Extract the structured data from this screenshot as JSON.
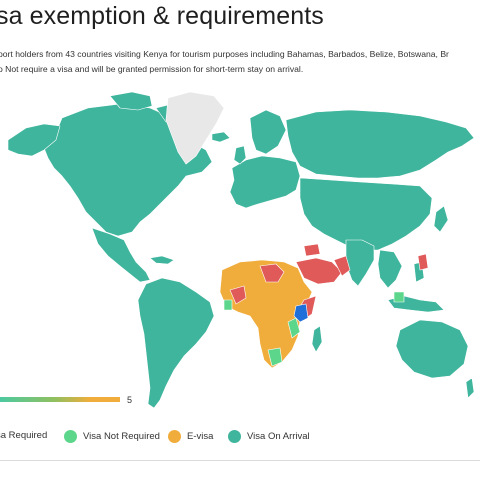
{
  "header": {
    "title": "sa exemption & requirements",
    "description_line1": "port holders from 43 countries visiting Kenya for tourism purposes including Bahamas, Barbados, Belize, Botswana, Br",
    "description_line2": "o Not require a visa and will be granted permission for short-term stay on arrival."
  },
  "scale": {
    "max_label": "5",
    "colors": [
      "#4cc9a0",
      "#f0ad3c"
    ]
  },
  "legend": {
    "items": [
      {
        "label": "sa Required",
        "color": "#e05a5a"
      },
      {
        "label": "Visa Not Required",
        "color": "#5cd68a"
      },
      {
        "label": "E-visa",
        "color": "#f0ad3c"
      },
      {
        "label": "Visa On Arrival",
        "color": "#3fb59d"
      }
    ]
  },
  "map": {
    "colors": {
      "visa_on_arrival": "#3fb59d",
      "visa_required": "#e05a5a",
      "visa_not_required": "#5cd68a",
      "e_visa": "#f0ad3c",
      "no_data": "#e8e8e8",
      "kenya": "#1e6fd9"
    }
  }
}
